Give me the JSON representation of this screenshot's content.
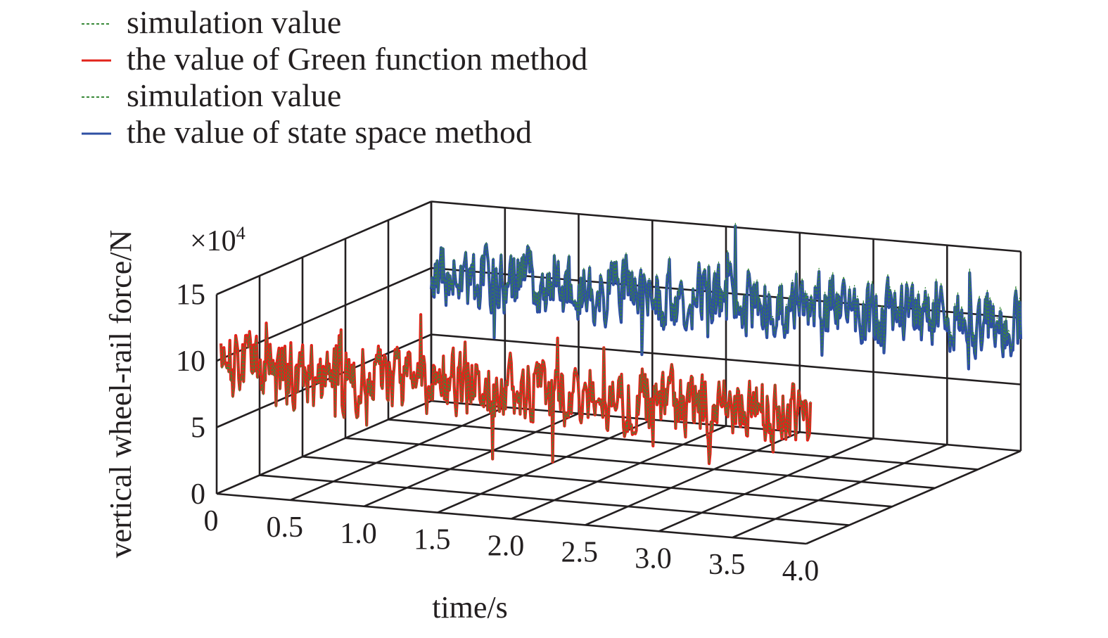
{
  "chart_data": {
    "type": "line",
    "projection": "3d-waterfall",
    "title": "",
    "xlabel": "time/s",
    "ylabel": "vertical wheel-rail force/N",
    "y_multiplier": "×10",
    "y_multiplier_exponent": "4",
    "x_ticks": [
      "0",
      "0.5",
      "1.0",
      "1.5",
      "2.0",
      "2.5",
      "3.0",
      "3.5",
      "4.0"
    ],
    "y_ticks": [
      "0",
      "5",
      "10",
      "15"
    ],
    "xlim": [
      0,
      4.0
    ],
    "ylim": [
      0,
      15
    ],
    "grid": true,
    "legend_position": "top-left",
    "legend": [
      {
        "label": "simulation value",
        "color": "#3a8a3a",
        "style": "dashed"
      },
      {
        "label": "the value of Green function method",
        "color": "#e2231a",
        "style": "solid"
      },
      {
        "label": "simulation value",
        "color": "#3a8a3a",
        "style": "dashed"
      },
      {
        "label": "the value of state space method",
        "color": "#2e4fa3",
        "style": "solid"
      }
    ],
    "series": [
      {
        "name": "the value of Green function method",
        "color": "#e2231a",
        "layer": "front",
        "mean": 9.5,
        "amplitude": 4.5,
        "x_range": [
          0,
          4.0
        ]
      },
      {
        "name": "simulation value",
        "color": "#3a8a3a",
        "layer": "front",
        "mean": 9.5,
        "amplitude": 4.5,
        "x_range": [
          0,
          4.0
        ]
      },
      {
        "name": "the value of state space method",
        "color": "#2e4fa3",
        "layer": "back",
        "mean": 9.5,
        "amplitude": 4.5,
        "x_range": [
          0,
          4.0
        ]
      },
      {
        "name": "simulation value",
        "color": "#3a8a3a",
        "layer": "back",
        "mean": 9.5,
        "amplitude": 4.5,
        "x_range": [
          0,
          4.0
        ]
      }
    ]
  }
}
